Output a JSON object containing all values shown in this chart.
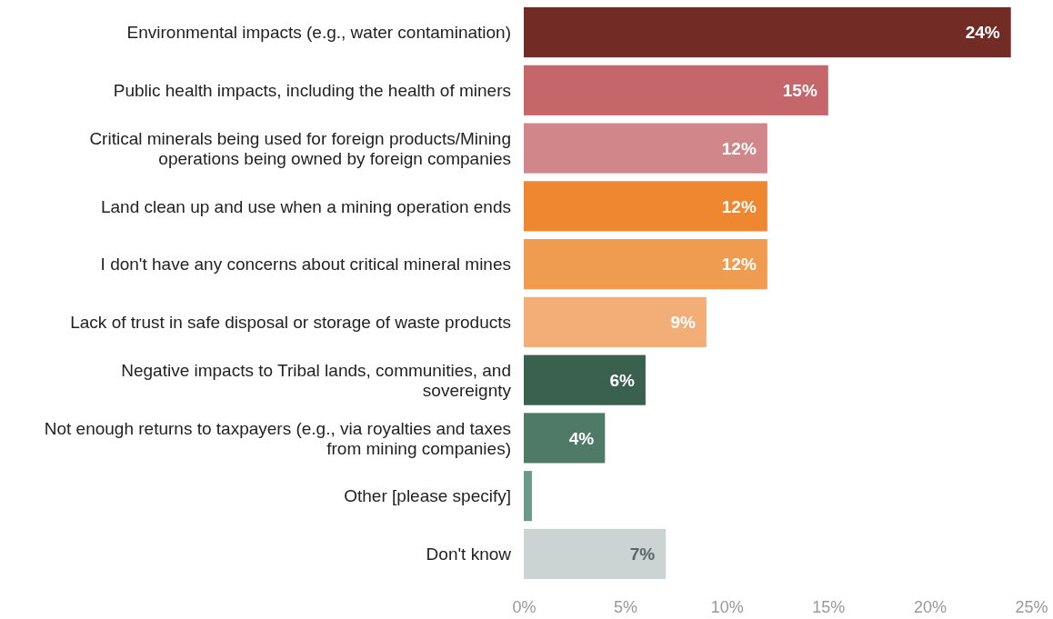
{
  "chart_data": {
    "type": "bar",
    "orientation": "horizontal",
    "categories": [
      "Environmental impacts (e.g., water contamination)",
      "Public health impacts, including the health of miners",
      "Critical minerals being used for foreign products/Mining operations being owned by foreign companies",
      "Land clean up and use when a mining operation ends",
      "I don't have any concerns about critical mineral mines",
      "Lack of trust in safe disposal or storage of waste products",
      "Negative impacts to Tribal lands, communities, and sovereignty",
      "Not enough returns to taxpayers (e.g., via royalties and taxes from mining companies)",
      "Other [please specify]",
      "Don't know"
    ],
    "values": [
      24,
      15,
      12,
      12,
      12,
      9,
      6,
      4,
      0.4,
      7
    ],
    "value_labels": [
      "24%",
      "15%",
      "12%",
      "12%",
      "12%",
      "9%",
      "6%",
      "4%",
      null,
      "7%"
    ],
    "colors": [
      "#722c25",
      "#c5666b",
      "#d1868a",
      "#ef8730",
      "#f09c50",
      "#f3ae78",
      "#3a6150",
      "#4f7a68",
      "#6b9a88",
      "#cbd3d3"
    ],
    "xlim": [
      0,
      25
    ],
    "xticks": [
      {
        "value": 0,
        "label": "0%"
      },
      {
        "value": 5,
        "label": "5%"
      },
      {
        "value": 10,
        "label": "10%"
      },
      {
        "value": 15,
        "label": "15%"
      },
      {
        "value": 20,
        "label": "20%"
      },
      {
        "value": 25,
        "label": "25%"
      }
    ],
    "grid": false
  }
}
